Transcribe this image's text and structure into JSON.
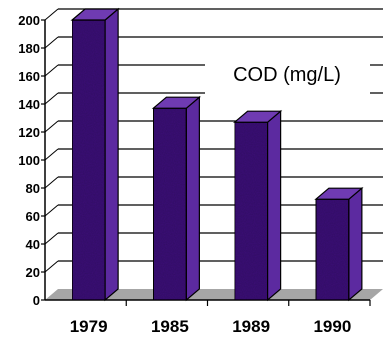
{
  "chart_data": {
    "type": "bar",
    "categories": [
      "1979",
      "1985",
      "1989",
      "1990"
    ],
    "values": [
      200,
      137,
      127,
      72
    ],
    "title": "COD (mg/L)",
    "xlabel": "",
    "ylabel": "",
    "ylim": [
      0,
      200
    ],
    "yticks": [
      "0",
      "20",
      "40",
      "60",
      "80",
      "100",
      "120",
      "140",
      "160",
      "180",
      "200"
    ],
    "grid": true,
    "style": "3d",
    "colors": {
      "bar_front": "#3d1478",
      "bar_side": "#5c2aa0",
      "bar_top": "#6f3bb2",
      "floor": "#a6a6a6",
      "grid": "#000000"
    }
  }
}
